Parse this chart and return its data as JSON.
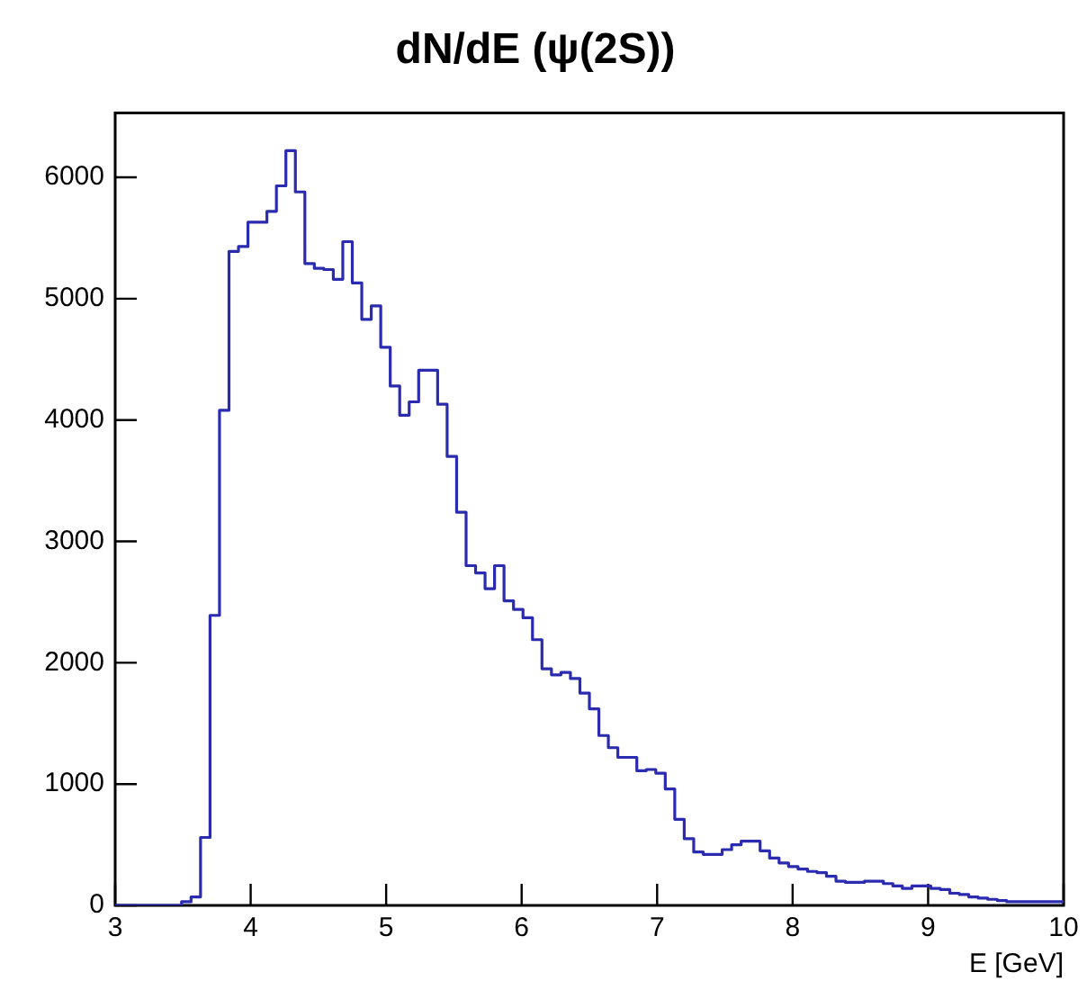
{
  "chart_data": {
    "type": "histogram",
    "title": "dN/dE (ψ(2S))",
    "xlabel": "E [GeV]",
    "color": "#2b2bb0",
    "bins": [
      3.0,
      3.07,
      3.14,
      3.21,
      3.28,
      3.35,
      3.42,
      3.49,
      3.56,
      3.63,
      3.7,
      3.77,
      3.84,
      3.91,
      3.98,
      4.05,
      4.12,
      4.19,
      4.26,
      4.33,
      4.4,
      4.47,
      4.54,
      4.61,
      4.68,
      4.75,
      4.82,
      4.89,
      4.96,
      5.03,
      5.1,
      5.17,
      5.24,
      5.31,
      5.38,
      5.45,
      5.52,
      5.59,
      5.66,
      5.73,
      5.8,
      5.87,
      5.94,
      6.01,
      6.08,
      6.15,
      6.22,
      6.29,
      6.36,
      6.43,
      6.5,
      6.57,
      6.64,
      6.71,
      6.78,
      6.85,
      6.92,
      6.99,
      7.06,
      7.13,
      7.2,
      7.27,
      7.34,
      7.41,
      7.48,
      7.55,
      7.62,
      7.69,
      7.76,
      7.83,
      7.9,
      7.97,
      8.04,
      8.11,
      8.18,
      8.25,
      8.32,
      8.39,
      8.46,
      8.53,
      8.6,
      8.67,
      8.74,
      8.81,
      8.88,
      8.95,
      9.02,
      9.09,
      9.16,
      9.23,
      9.3,
      9.37,
      9.44,
      9.51,
      9.58,
      9.65,
      9.72,
      9.79,
      9.86,
      9.93,
      10.0
    ],
    "values": [
      0,
      0,
      0,
      0,
      0,
      0,
      0,
      30,
      70,
      560,
      2390,
      4080,
      5390,
      5430,
      5630,
      5630,
      5720,
      5930,
      6220,
      5880,
      5290,
      5250,
      5240,
      5160,
      5470,
      5130,
      4830,
      4940,
      4600,
      4280,
      4040,
      4150,
      4410,
      4410,
      4130,
      3700,
      3240,
      2800,
      2740,
      2610,
      2800,
      2510,
      2440,
      2370,
      2190,
      1950,
      1900,
      1920,
      1870,
      1750,
      1620,
      1400,
      1300,
      1220,
      1220,
      1110,
      1120,
      1090,
      960,
      710,
      550,
      440,
      420,
      420,
      460,
      500,
      530,
      530,
      450,
      390,
      350,
      320,
      300,
      280,
      270,
      240,
      200,
      190,
      190,
      200,
      200,
      180,
      160,
      140,
      160,
      160,
      140,
      130,
      100,
      90,
      70,
      60,
      50,
      40,
      30,
      30,
      30,
      30,
      30,
      30
    ],
    "xlim": [
      3,
      10
    ],
    "xticks": [
      3,
      4,
      5,
      6,
      7,
      8,
      9,
      10
    ],
    "ylim": [
      0,
      6530
    ],
    "yticks": [
      0,
      1000,
      2000,
      3000,
      4000,
      5000,
      6000
    ],
    "grid": false,
    "legend": false
  }
}
